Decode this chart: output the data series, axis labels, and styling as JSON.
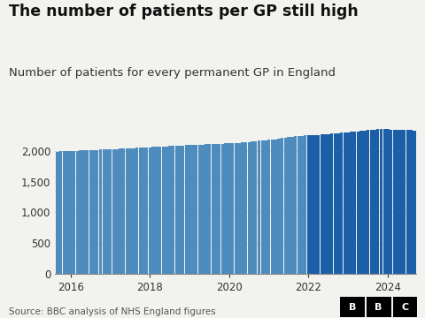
{
  "title": "The number of patients per GP still high",
  "subtitle": "Number of patients for every permanent GP in England",
  "source": "Source: BBC analysis of NHS England figures",
  "background_color": "#f2f2ee",
  "bar_color_light": "#4f8cbe",
  "bar_color_dark": "#1a5fa8",
  "title_fontsize": 12.5,
  "subtitle_fontsize": 9.5,
  "source_fontsize": 7.5,
  "ylim": [
    0,
    2700
  ],
  "yticks": [
    0,
    500,
    1000,
    1500,
    2000
  ],
  "xlabel_ticks": [
    2016,
    2018,
    2020,
    2022,
    2024
  ],
  "values": [
    1990,
    1992,
    1994,
    1997,
    2000,
    2002,
    2005,
    2007,
    2010,
    2013,
    2015,
    2018,
    2020,
    2022,
    2024,
    2026,
    2030,
    2032,
    2035,
    2038,
    2040,
    2043,
    2045,
    2048,
    2050,
    2053,
    2056,
    2060,
    2063,
    2066,
    2070,
    2073,
    2075,
    2078,
    2080,
    2082,
    2085,
    2088,
    2090,
    2093,
    2095,
    2098,
    2100,
    2103,
    2105,
    2108,
    2110,
    2113,
    2115,
    2118,
    2120,
    2123,
    2125,
    2128,
    2130,
    2135,
    2140,
    2145,
    2150,
    2155,
    2160,
    2165,
    2170,
    2175,
    2180,
    2185,
    2190,
    2200,
    2210,
    2220,
    2230,
    2235,
    2240,
    2245,
    2250,
    2252,
    2252,
    2253,
    2258,
    2262,
    2268,
    2272,
    2278,
    2283,
    2288,
    2293,
    2298,
    2303,
    2308,
    2313,
    2318,
    2323,
    2328,
    2333,
    2338,
    2343,
    2350,
    2355,
    2360,
    2358,
    2355,
    2352,
    2350,
    2348,
    2345,
    2343,
    2340,
    2338,
    2334
  ],
  "color_change_index": 76,
  "n_total": 109
}
